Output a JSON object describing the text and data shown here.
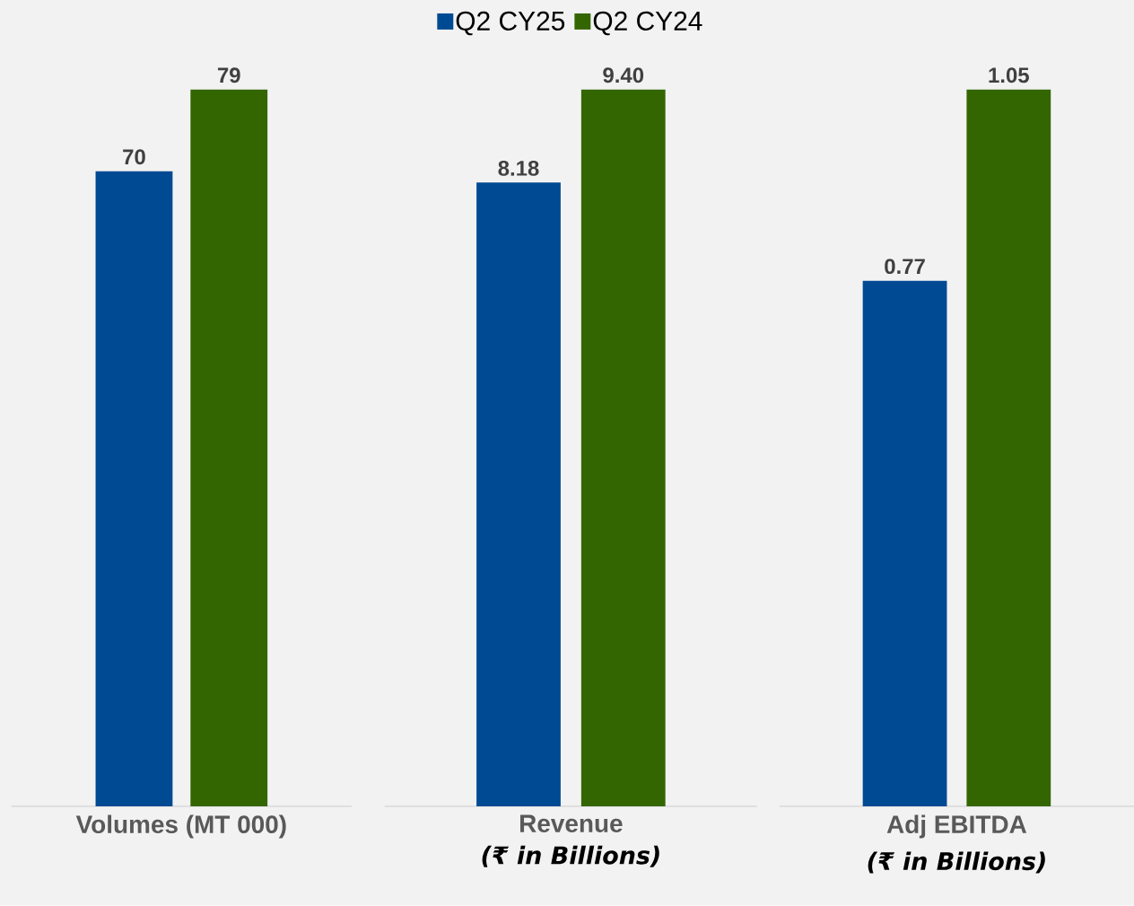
{
  "chart_data": [
    {
      "type": "bar",
      "categories": [
        "Volumes (MT 000)"
      ],
      "ylim": [
        0,
        79
      ],
      "series": [
        {
          "color": "#004a93",
          "values": [
            70
          ],
          "value_labels": [
            "70"
          ]
        },
        {
          "color": "#336600",
          "values": [
            79
          ],
          "value_labels": [
            "79"
          ]
        }
      ]
    },
    {
      "type": "bar",
      "categories": [
        "Revenue"
      ],
      "xlabel": "(₹ in Billions)",
      "ylim": [
        0,
        9.4
      ],
      "legend": "top",
      "series": [
        {
          "name": "Q2 CY25",
          "color": "#004a93",
          "values": [
            8.18
          ],
          "value_labels": [
            "8.18"
          ]
        },
        {
          "name": "Q2 CY24",
          "color": "#336600",
          "values": [
            9.4
          ],
          "value_labels": [
            "9.40"
          ]
        }
      ]
    },
    {
      "type": "bar",
      "categories": [
        "Adj EBITDA"
      ],
      "xlabel": "(₹ in Billions)",
      "ylim": [
        0,
        1.05
      ],
      "series": [
        {
          "color": "#004a93",
          "values": [
            0.77
          ],
          "value_labels": [
            "0.77"
          ]
        },
        {
          "color": "#336600",
          "values": [
            1.05
          ],
          "value_labels": [
            "1.05"
          ]
        }
      ]
    }
  ]
}
